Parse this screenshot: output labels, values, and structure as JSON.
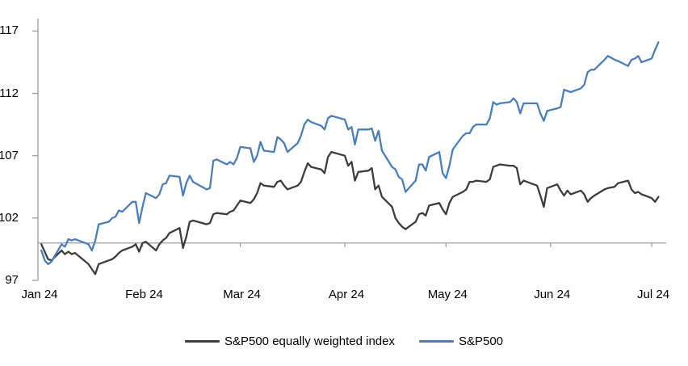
{
  "chart_data": {
    "type": "line",
    "title": "",
    "xlabel": "",
    "ylabel": "",
    "grid": false,
    "legend_position": "bottom-center",
    "axis_color": "#9d9d9d",
    "baseline_value": 100,
    "ylim": [
      97,
      118
    ],
    "y_ticks": [
      117,
      112,
      107,
      102,
      97
    ],
    "y_tick_labels": [
      "117",
      "112",
      "107",
      "102",
      "97"
    ],
    "month_tick_days": [
      0,
      31,
      60,
      91,
      121,
      152,
      182
    ],
    "x_tick_labels": [
      "Jan 24",
      "Feb 24",
      "Mar 24",
      "Apr 24",
      "May 24",
      "Jun 24",
      "Jul 24"
    ],
    "dates": [
      "2024-01-02",
      "2024-01-03",
      "2024-01-04",
      "2024-01-05",
      "2024-01-08",
      "2024-01-09",
      "2024-01-10",
      "2024-01-11",
      "2024-01-12",
      "2024-01-16",
      "2024-01-17",
      "2024-01-18",
      "2024-01-19",
      "2024-01-22",
      "2024-01-23",
      "2024-01-24",
      "2024-01-25",
      "2024-01-26",
      "2024-01-29",
      "2024-01-30",
      "2024-01-31",
      "2024-02-01",
      "2024-02-02",
      "2024-02-05",
      "2024-02-06",
      "2024-02-07",
      "2024-02-08",
      "2024-02-09",
      "2024-02-12",
      "2024-02-13",
      "2024-02-14",
      "2024-02-15",
      "2024-02-16",
      "2024-02-20",
      "2024-02-21",
      "2024-02-22",
      "2024-02-23",
      "2024-02-26",
      "2024-02-27",
      "2024-02-28",
      "2024-02-29",
      "2024-03-01",
      "2024-03-04",
      "2024-03-05",
      "2024-03-06",
      "2024-03-07",
      "2024-03-08",
      "2024-03-11",
      "2024-03-12",
      "2024-03-13",
      "2024-03-14",
      "2024-03-15",
      "2024-03-18",
      "2024-03-19",
      "2024-03-20",
      "2024-03-21",
      "2024-03-22",
      "2024-03-25",
      "2024-03-26",
      "2024-03-27",
      "2024-03-28",
      "2024-04-01",
      "2024-04-02",
      "2024-04-03",
      "2024-04-04",
      "2024-04-05",
      "2024-04-08",
      "2024-04-09",
      "2024-04-10",
      "2024-04-11",
      "2024-04-12",
      "2024-04-15",
      "2024-04-16",
      "2024-04-17",
      "2024-04-18",
      "2024-04-19",
      "2024-04-22",
      "2024-04-23",
      "2024-04-24",
      "2024-04-25",
      "2024-04-26",
      "2024-04-29",
      "2024-04-30",
      "2024-05-01",
      "2024-05-02",
      "2024-05-03",
      "2024-05-06",
      "2024-05-07",
      "2024-05-08",
      "2024-05-09",
      "2024-05-10",
      "2024-05-13",
      "2024-05-14",
      "2024-05-15",
      "2024-05-16",
      "2024-05-17",
      "2024-05-20",
      "2024-05-21",
      "2024-05-22",
      "2024-05-23",
      "2024-05-24",
      "2024-05-28",
      "2024-05-29",
      "2024-05-30",
      "2024-05-31",
      "2024-06-03",
      "2024-06-04",
      "2024-06-05",
      "2024-06-06",
      "2024-06-07",
      "2024-06-10",
      "2024-06-11",
      "2024-06-12",
      "2024-06-13",
      "2024-06-14",
      "2024-06-17",
      "2024-06-18",
      "2024-06-20",
      "2024-06-21",
      "2024-06-24",
      "2024-06-25",
      "2024-06-26",
      "2024-06-27",
      "2024-06-28",
      "2024-07-01",
      "2024-07-02",
      "2024-07-03"
    ],
    "series": [
      {
        "name": "S&P500 equally weighted index",
        "color": "#3d3d3d",
        "values": [
          99.9,
          99.3,
          98.7,
          98.6,
          99.4,
          99.1,
          99.3,
          99.1,
          99.2,
          98.3,
          97.9,
          97.5,
          98.3,
          98.6,
          98.7,
          98.9,
          99.2,
          99.4,
          99.7,
          99.9,
          99.3,
          100.0,
          100.1,
          99.4,
          99.9,
          100.2,
          100.4,
          100.8,
          101.2,
          99.6,
          100.5,
          101.7,
          101.8,
          101.5,
          101.6,
          102.3,
          102.4,
          102.3,
          102.5,
          102.6,
          103.0,
          103.4,
          103.2,
          103.5,
          104.0,
          104.8,
          104.6,
          104.5,
          104.9,
          105.0,
          104.6,
          104.3,
          104.6,
          104.9,
          105.7,
          106.4,
          106.1,
          105.9,
          105.6,
          106.9,
          107.3,
          107.0,
          106.2,
          106.5,
          105.0,
          105.7,
          105.8,
          106.0,
          104.3,
          104.6,
          103.7,
          102.9,
          102.0,
          101.6,
          101.3,
          101.1,
          101.7,
          102.3,
          102.4,
          102.2,
          103.0,
          103.2,
          102.7,
          102.3,
          103.2,
          103.7,
          104.1,
          104.3,
          104.9,
          104.9,
          105.0,
          104.9,
          105.1,
          106.1,
          106.2,
          106.3,
          106.2,
          106.2,
          106.0,
          104.7,
          105.0,
          104.6,
          103.8,
          102.9,
          104.4,
          104.7,
          104.2,
          103.8,
          104.2,
          103.9,
          104.2,
          103.9,
          103.3,
          103.6,
          103.8,
          104.3,
          104.4,
          104.5,
          104.8,
          105.0,
          104.3,
          104.0,
          104.1,
          103.9,
          103.6,
          103.3,
          103.7
        ]
      },
      {
        "name": "S&P500",
        "color": "#4a7ebb",
        "values": [
          99.4,
          98.6,
          98.3,
          98.5,
          99.9,
          99.7,
          100.3,
          100.2,
          100.3,
          99.9,
          99.4,
          100.2,
          101.5,
          101.7,
          102.0,
          102.1,
          102.6,
          102.5,
          103.3,
          103.3,
          101.6,
          102.9,
          104.0,
          103.6,
          103.9,
          104.7,
          104.8,
          105.4,
          105.3,
          103.8,
          104.8,
          105.4,
          104.9,
          104.3,
          104.4,
          106.6,
          106.7,
          106.3,
          106.5,
          106.3,
          106.8,
          107.7,
          107.6,
          106.5,
          107.0,
          108.1,
          107.4,
          107.3,
          108.5,
          108.3,
          108.0,
          107.3,
          108.0,
          108.6,
          109.5,
          109.9,
          109.7,
          109.4,
          109.1,
          110.0,
          110.2,
          109.9,
          109.1,
          109.3,
          107.9,
          109.1,
          109.1,
          109.2,
          108.2,
          109.0,
          107.4,
          106.1,
          105.9,
          105.3,
          105.1,
          104.1,
          105.0,
          106.3,
          106.3,
          105.8,
          106.9,
          107.3,
          105.6,
          105.2,
          106.2,
          107.5,
          108.6,
          108.8,
          108.8,
          109.3,
          109.5,
          109.5,
          110.0,
          111.3,
          111.1,
          111.2,
          111.3,
          111.6,
          111.3,
          110.4,
          111.2,
          111.2,
          110.4,
          109.8,
          110.6,
          110.8,
          110.9,
          112.3,
          112.2,
          112.1,
          112.4,
          112.7,
          113.7,
          113.9,
          113.9,
          114.7,
          115.0,
          114.7,
          114.6,
          114.2,
          114.7,
          114.8,
          115.0,
          114.5,
          114.8,
          115.5,
          116.1
        ]
      }
    ]
  },
  "legend": {
    "items": [
      {
        "label": "S&P500 equally weighted index"
      },
      {
        "label": "S&P500"
      }
    ]
  }
}
